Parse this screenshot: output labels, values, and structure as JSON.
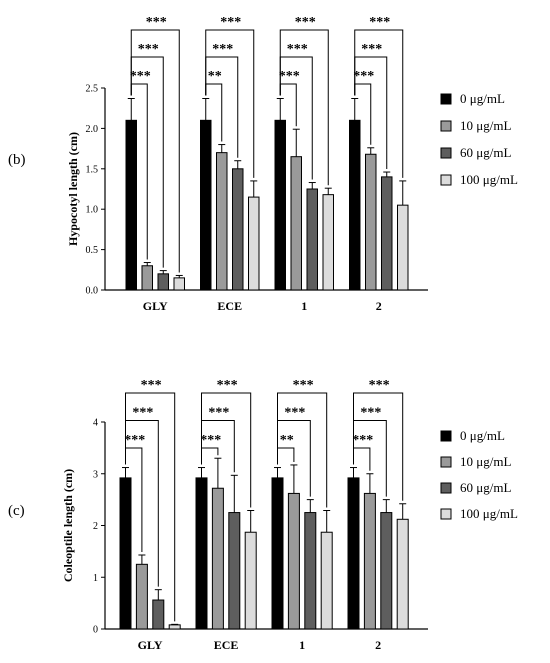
{
  "legend_series": [
    "0 μg/mL",
    "10 μg/mL",
    "60 μg/mL",
    "100 μg/mL"
  ],
  "chart_data": [
    {
      "type": "bar",
      "panel_label": "(b)",
      "ylabel": "Hypocotyl length (cm)",
      "categories": [
        "GLY",
        "ECE",
        "1",
        "2"
      ],
      "ylim": [
        0,
        2.5
      ],
      "yticks": [
        "0.0",
        "0.5",
        "1.0",
        "1.5",
        "2.0",
        "2.5"
      ],
      "series": [
        {
          "name": "0 μg/mL",
          "values": [
            2.1,
            2.1,
            2.1,
            2.1
          ],
          "errors": [
            0.27,
            0.27,
            0.27,
            0.27
          ]
        },
        {
          "name": "10 μg/mL",
          "values": [
            0.3,
            1.7,
            1.65,
            1.68
          ],
          "errors": [
            0.04,
            0.1,
            0.34,
            0.08
          ]
        },
        {
          "name": "60 μg/mL",
          "values": [
            0.2,
            1.5,
            1.25,
            1.4
          ],
          "errors": [
            0.04,
            0.1,
            0.08,
            0.06
          ]
        },
        {
          "name": "100 μg/mL",
          "values": [
            0.15,
            1.15,
            1.18,
            1.05
          ],
          "errors": [
            0.03,
            0.2,
            0.08,
            0.3
          ]
        }
      ],
      "significance": [
        [
          "***",
          "***",
          "***"
        ],
        [
          "**",
          "***",
          "***"
        ],
        [
          "***",
          "***",
          "***"
        ],
        [
          "***",
          "***",
          "***"
        ]
      ],
      "legend_position": "right"
    },
    {
      "type": "bar",
      "panel_label": "(c)",
      "ylabel": "Coleoptile length (cm)",
      "categories": [
        "GLY",
        "ECE",
        "1",
        "2"
      ],
      "ylim": [
        0,
        4
      ],
      "yticks": [
        "0",
        "1",
        "2",
        "3",
        "4"
      ],
      "series": [
        {
          "name": "0 μg/mL",
          "values": [
            2.92,
            2.92,
            2.92,
            2.92
          ],
          "errors": [
            0.2,
            0.2,
            0.2,
            0.2
          ]
        },
        {
          "name": "10 μg/mL",
          "values": [
            1.25,
            2.72,
            2.62,
            2.62
          ],
          "errors": [
            0.18,
            0.58,
            0.55,
            0.38
          ]
        },
        {
          "name": "60 μg/mL",
          "values": [
            0.56,
            2.25,
            2.25,
            2.25
          ],
          "errors": [
            0.2,
            0.72,
            0.25,
            0.25
          ]
        },
        {
          "name": "100 μg/mL",
          "values": [
            0.08,
            1.87,
            1.87,
            2.12
          ],
          "errors": [
            0.01,
            0.42,
            0.42,
            0.3
          ]
        }
      ],
      "significance": [
        [
          "***",
          "***",
          "***"
        ],
        [
          "***",
          "***",
          "***"
        ],
        [
          "**",
          "***",
          "***"
        ],
        [
          "***",
          "***",
          "***"
        ]
      ],
      "legend_position": "right"
    }
  ]
}
